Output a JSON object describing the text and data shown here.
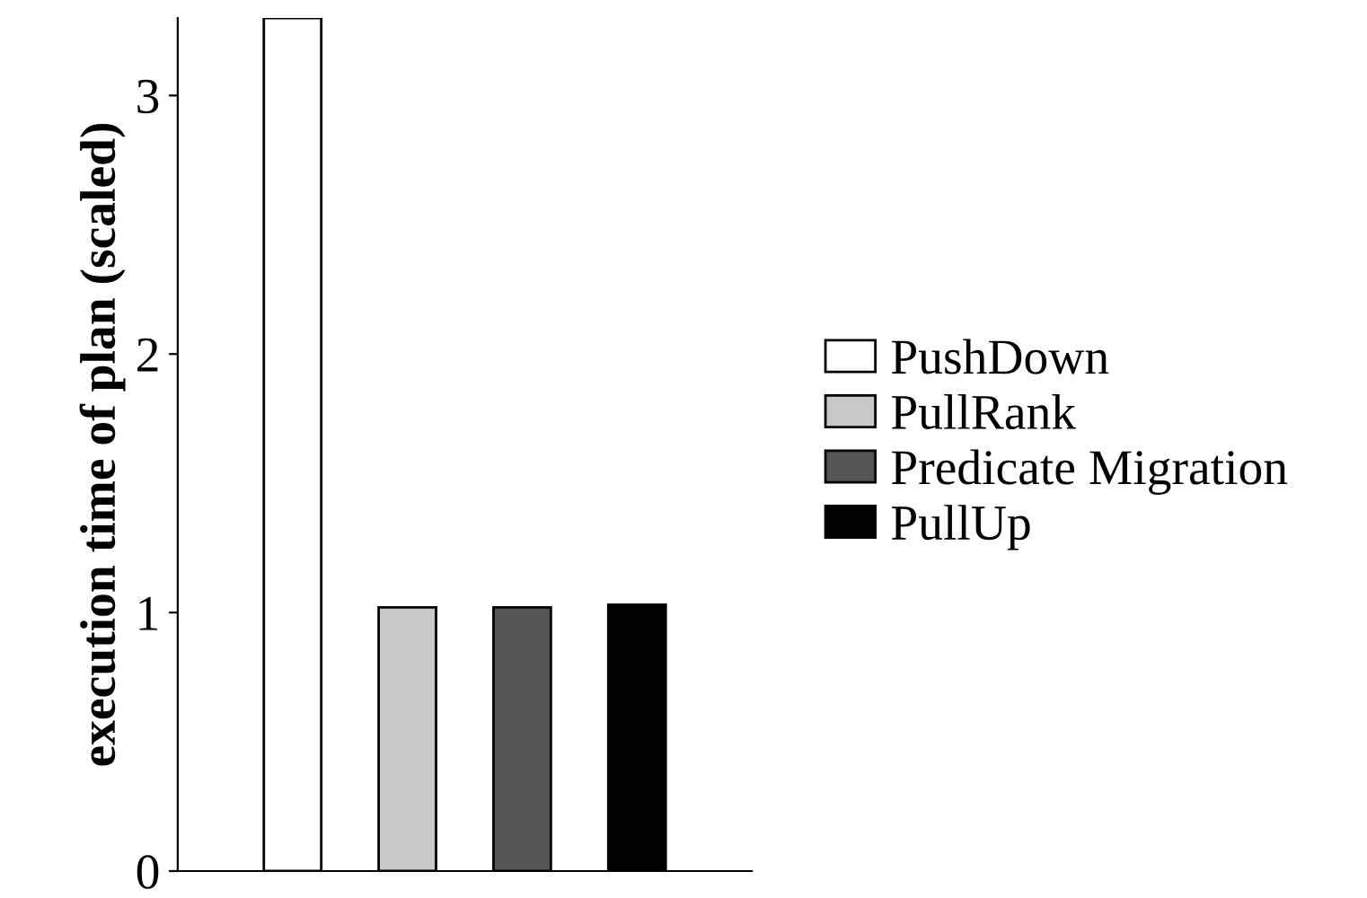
{
  "chart_data": {
    "type": "bar",
    "ylabel": "execution time of plan (scaled)",
    "categories": [
      null
    ],
    "series": [
      {
        "name": "PushDown",
        "color": "#ffffff",
        "values": [
          3.3
        ]
      },
      {
        "name": "PullRank",
        "color": "#c8c8c8",
        "values": [
          1.02
        ]
      },
      {
        "name": "Predicate Migration",
        "color": "#555555",
        "values": [
          1.02
        ]
      },
      {
        "name": "PullUp",
        "color": "#000000",
        "values": [
          1.03
        ]
      }
    ],
    "ylim": [
      0,
      3.3
    ],
    "yticks": [
      0,
      1,
      2,
      3
    ],
    "grid": false,
    "legend": "right",
    "tick_labels": "y"
  }
}
